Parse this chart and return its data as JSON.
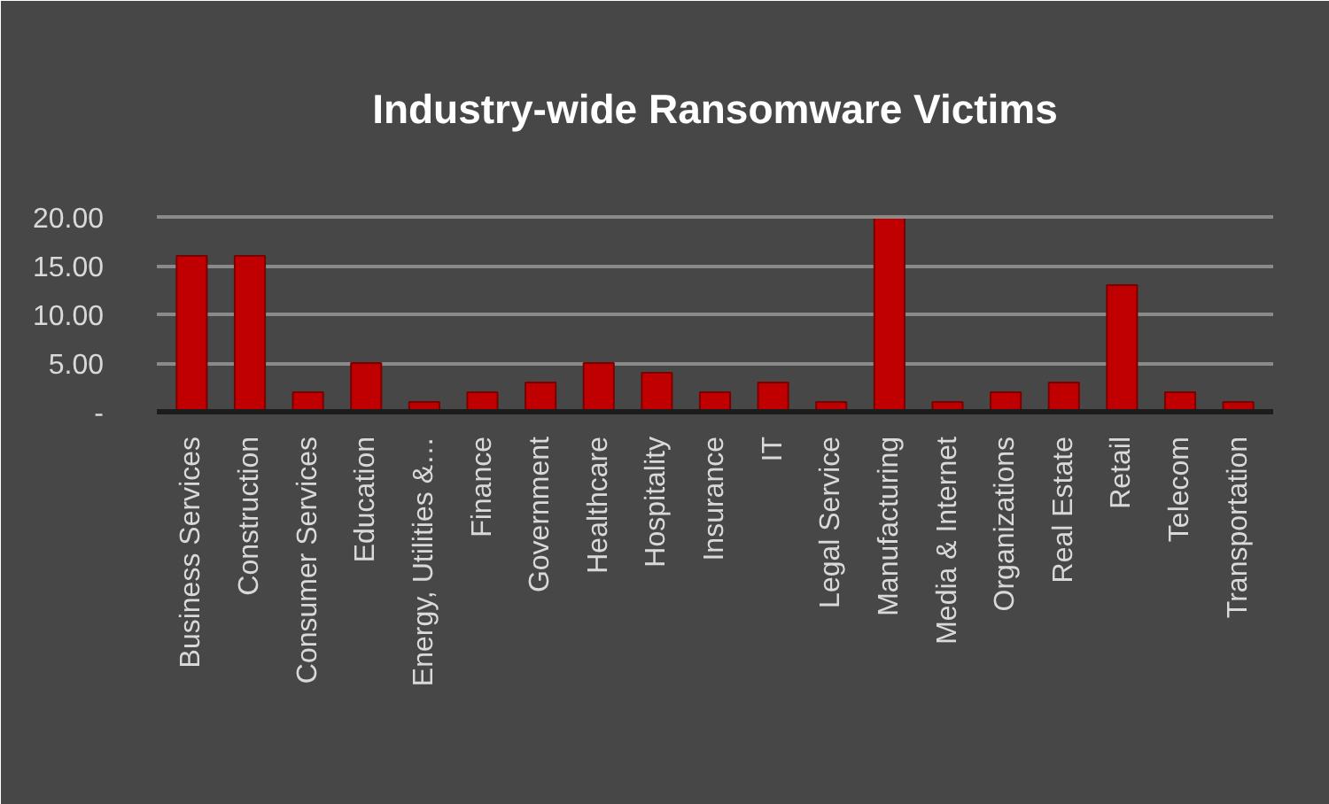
{
  "chart_data": {
    "type": "bar",
    "title": "Industry-wide Ransomware Victims",
    "categories": [
      "Business Services",
      "Construction",
      "Consumer Services",
      "Education",
      "Energy, Utilities &…",
      "Finance",
      "Government",
      "Healthcare",
      "Hospitality",
      "Insurance",
      "IT",
      "Legal Service",
      "Manufacturing",
      "Media & Internet",
      "Organizations",
      "Real Estate",
      "Retail",
      "Telecom",
      "Transportation"
    ],
    "values": [
      16,
      16,
      2,
      5,
      1,
      2,
      3,
      5,
      4,
      2,
      3,
      1,
      20,
      1,
      2,
      3,
      13,
      2,
      1
    ],
    "color": "#c00000",
    "ylim": [
      0,
      20
    ],
    "yticks": [
      {
        "value": 0,
        "label": "-"
      },
      {
        "value": 5,
        "label": "5.00"
      },
      {
        "value": 10,
        "label": "10.00"
      },
      {
        "value": 15,
        "label": "15.00"
      },
      {
        "value": 20,
        "label": "20.00"
      }
    ],
    "grid": "y"
  }
}
